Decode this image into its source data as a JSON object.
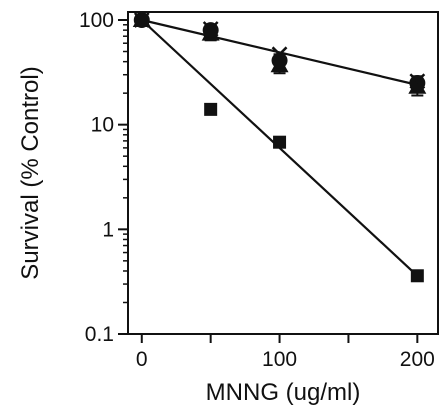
{
  "chart_data": {
    "type": "scatter",
    "title": "",
    "xlabel": "MNNG (ug/ml)",
    "ylabel": "Survival (% Control)",
    "xlim": [
      -10,
      215
    ],
    "ylim": [
      0.1,
      100
    ],
    "yscale": "log",
    "grid": false,
    "x_ticks": [
      0,
      100,
      200
    ],
    "x_tick_labels": [
      "0",
      "100",
      "200"
    ],
    "x_minor_ticks": [
      50,
      150
    ],
    "y_ticks": [
      0.1,
      1,
      10,
      100
    ],
    "y_tick_labels": [
      "0.1",
      "1",
      "10",
      "100"
    ],
    "series": [
      {
        "marker": "square",
        "color": "#111111",
        "x": [
          0,
          50,
          100,
          200
        ],
        "y": [
          100,
          14,
          6.8,
          0.36
        ],
        "fit": {
          "x": [
            0,
            200
          ],
          "y": [
            100,
            0.36
          ]
        }
      },
      {
        "marker": "triangle",
        "color": "#111111",
        "x": [
          0,
          50,
          100,
          200
        ],
        "y": [
          100,
          74,
          37,
          23
        ],
        "errors": [
          12,
          10,
          6,
          4
        ]
      },
      {
        "marker": "circle",
        "color": "#111111",
        "x": [
          0,
          50,
          100,
          200
        ],
        "y": [
          100,
          80,
          41,
          25
        ],
        "errors": [
          12,
          10,
          6,
          4
        ]
      },
      {
        "marker": "x",
        "color": "#111111",
        "x": [
          0,
          50,
          100,
          200
        ],
        "y": [
          100,
          82,
          47,
          26
        ],
        "fit": {
          "x": [
            0,
            200
          ],
          "y": [
            100,
            24
          ]
        }
      }
    ]
  }
}
